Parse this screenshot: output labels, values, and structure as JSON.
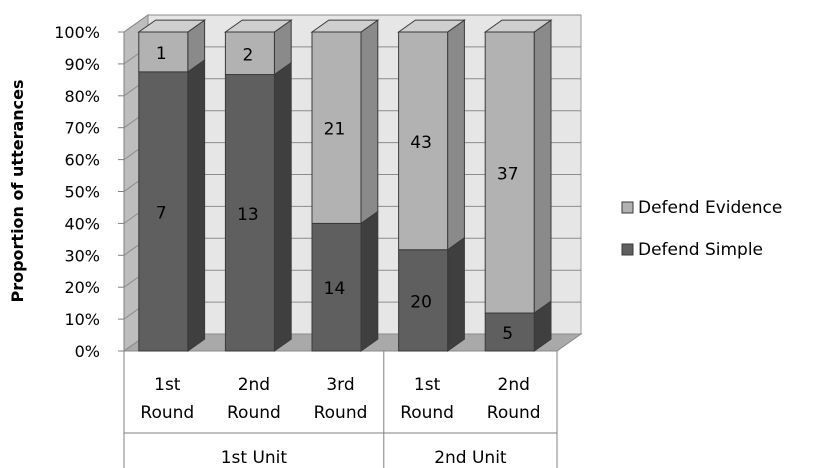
{
  "chart_data": {
    "type": "bar",
    "stacked": true,
    "percent_stacked": true,
    "three_d": true,
    "ylabel": "Proportion of utterances",
    "yticks": [
      "0%",
      "10%",
      "20%",
      "30%",
      "40%",
      "50%",
      "60%",
      "70%",
      "80%",
      "90%",
      "100%"
    ],
    "ylim": [
      0,
      100
    ],
    "categories": [
      {
        "line1": "1st",
        "line2": "Round",
        "group": "1st Unit"
      },
      {
        "line1": "2nd",
        "line2": "Round",
        "group": "1st Unit"
      },
      {
        "line1": "3rd",
        "line2": "Round",
        "group": "1st Unit"
      },
      {
        "line1": "1st",
        "line2": "Round",
        "group": "2nd Unit"
      },
      {
        "line1": "2nd",
        "line2": "Round",
        "group": "2nd Unit"
      }
    ],
    "groups": [
      {
        "label": "1st Unit",
        "count": 3
      },
      {
        "label": "2nd Unit",
        "count": 2
      }
    ],
    "series": [
      {
        "name": "Defend Simple",
        "values": [
          7,
          13,
          14,
          20,
          5
        ],
        "color": "#5f5f5f",
        "side_color": "#3f3f3f",
        "top_color": "#7a7a7a"
      },
      {
        "name": "Defend Evidence",
        "values": [
          1,
          2,
          21,
          43,
          37
        ],
        "color": "#b2b2b2",
        "side_color": "#8a8a8a",
        "top_color": "#cfcfcf"
      }
    ],
    "legend_position": "right",
    "grid": true
  }
}
